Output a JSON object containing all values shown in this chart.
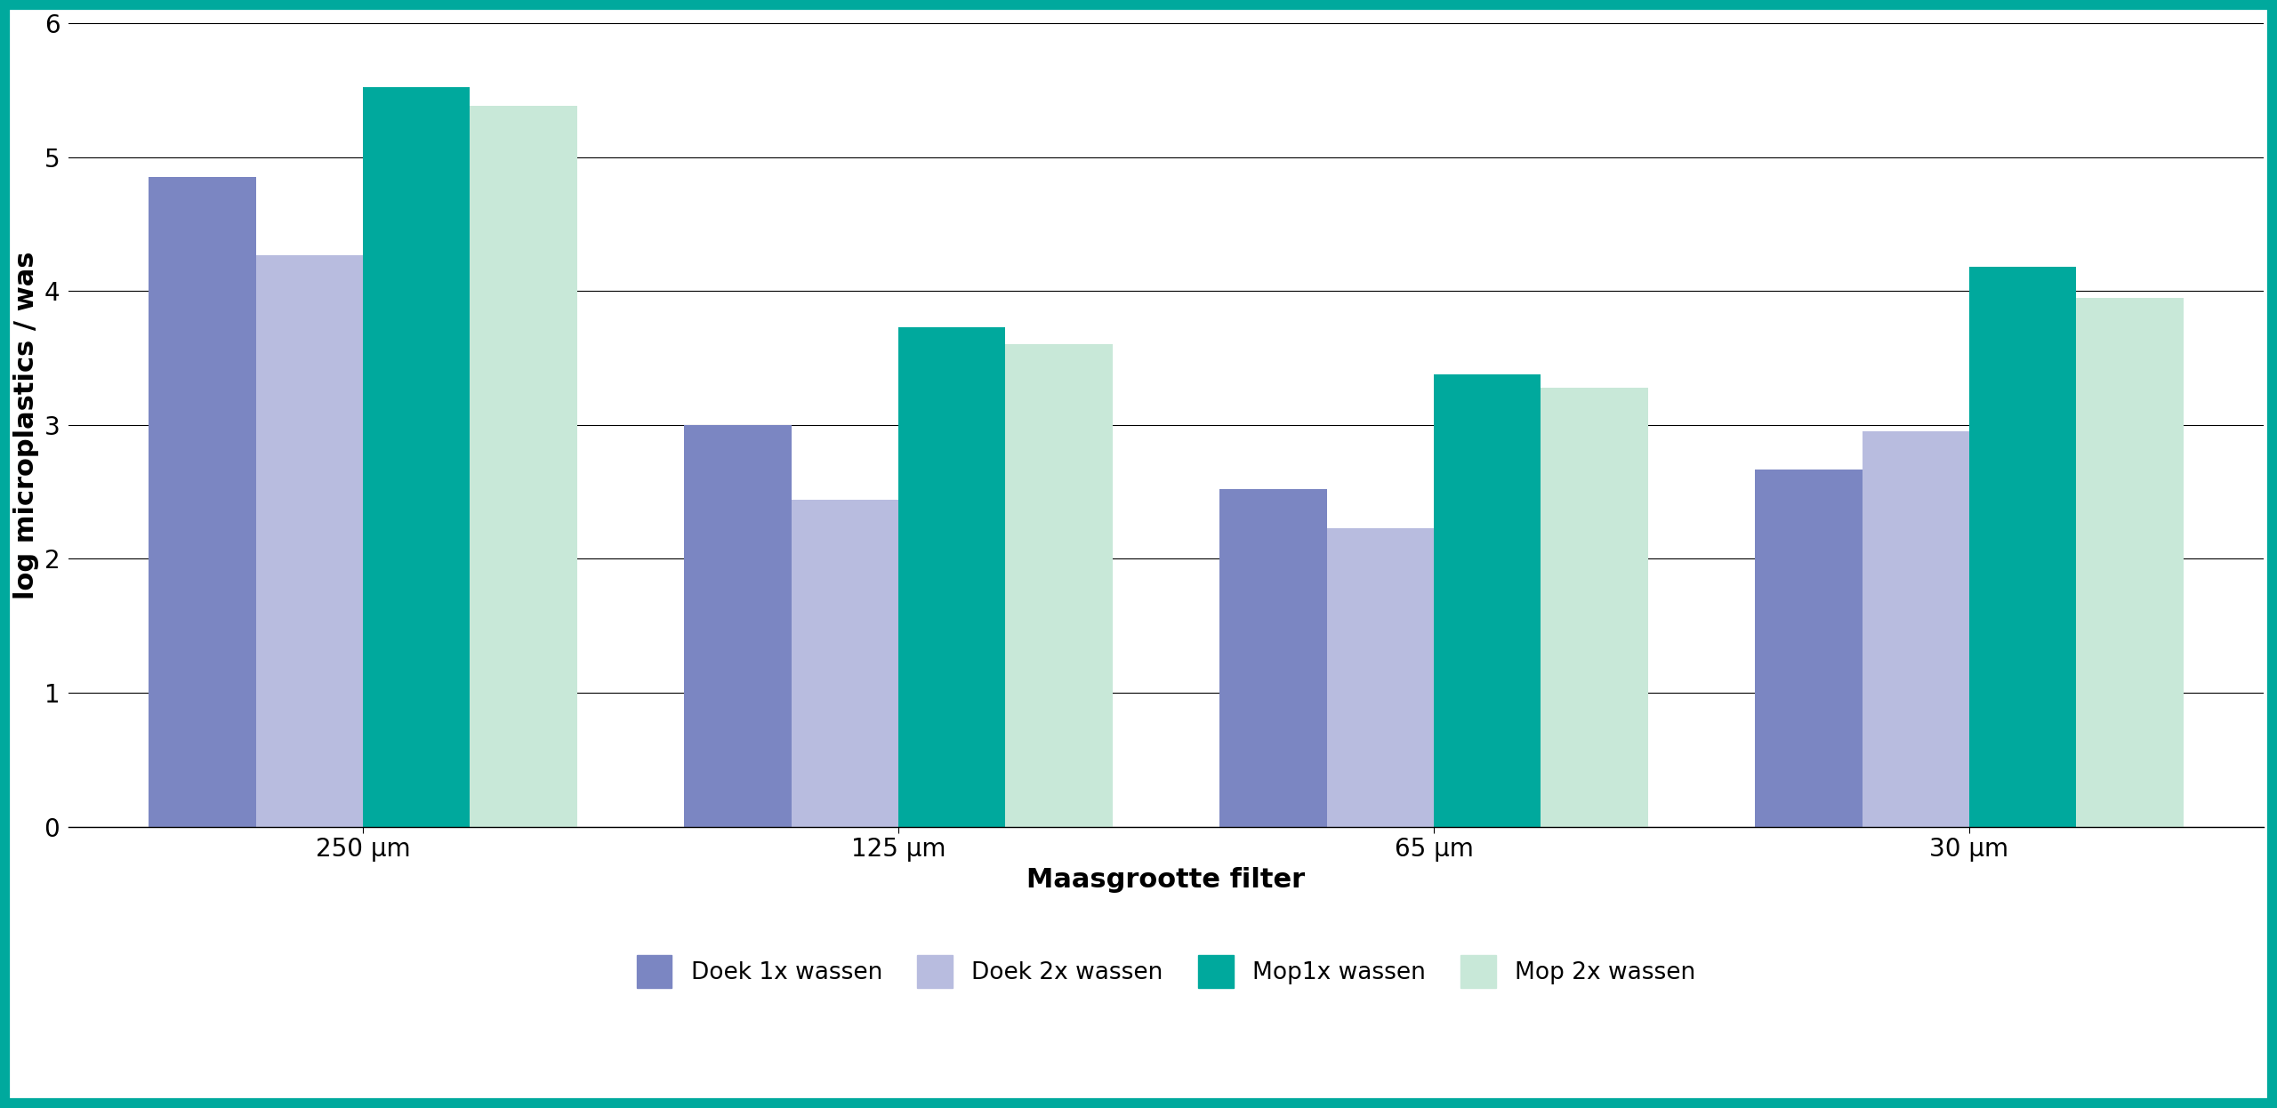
{
  "categories": [
    "250 μm",
    "125 μm",
    "65 μm",
    "30 μm"
  ],
  "series": {
    "Doek 1x wassen": [
      4.85,
      3.0,
      2.52,
      2.67
    ],
    "Doek 2x wassen": [
      4.27,
      2.44,
      2.23,
      2.95
    ],
    "Mop1x wassen": [
      5.52,
      3.73,
      3.38,
      4.18
    ],
    "Mop 2x wassen": [
      5.38,
      3.6,
      3.28,
      3.95
    ]
  },
  "colors": {
    "Doek 1x wassen": "#7b86c2",
    "Doek 2x wassen": "#b8bcdf",
    "Mop1x wassen": "#00a99d",
    "Mop 2x wassen": "#c8e8d8"
  },
  "ylabel": "log microplastics / was",
  "xlabel": "Maasgrootte filter",
  "ylim": [
    0,
    6
  ],
  "yticks": [
    0,
    1,
    2,
    3,
    4,
    5,
    6
  ],
  "bar_width": 0.2,
  "background_color": "#ffffff",
  "border_color": "#00a99d",
  "border_width": 8,
  "grid_color": "#000000",
  "grid_linewidth": 0.8,
  "tick_fontsize": 20,
  "label_fontsize": 22,
  "legend_fontsize": 19
}
